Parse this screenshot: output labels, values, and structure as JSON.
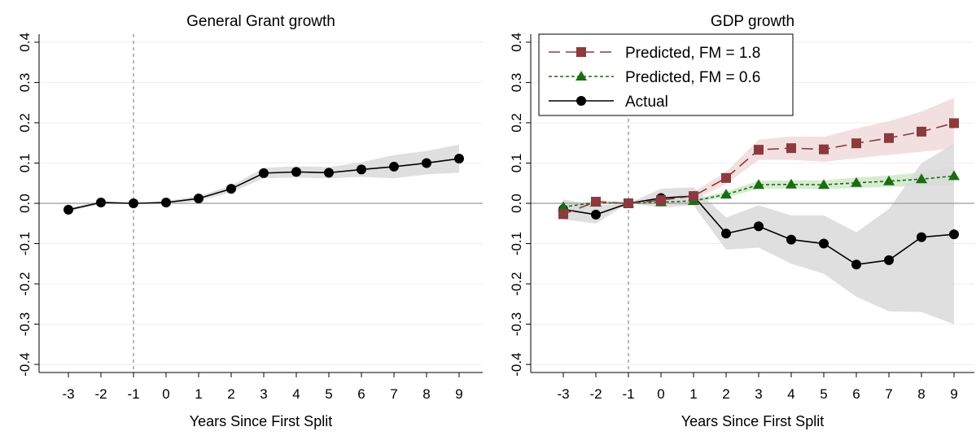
{
  "chart_data": [
    {
      "type": "line",
      "title": "General Grant growth",
      "xlabel": "Years Since First Split",
      "ylabel": "",
      "x": [
        -3,
        -2,
        -1,
        0,
        1,
        2,
        3,
        4,
        5,
        6,
        7,
        8,
        9
      ],
      "xticks": [
        "-3",
        "-2",
        "-1",
        "0",
        "1",
        "2",
        "3",
        "4",
        "5",
        "6",
        "7",
        "8",
        "9"
      ],
      "yticks": [
        "-0.4",
        "-0.3",
        "-0.2",
        "-0.1",
        "0.0",
        "0.1",
        "0.2",
        "0.3",
        "0.4"
      ],
      "ylim": [
        -0.42,
        0.42
      ],
      "xlim": [
        -3.5,
        9.5
      ],
      "grid": "horizontal",
      "zero_line": true,
      "vline_x": -1,
      "series": [
        {
          "style": "solid-circle",
          "color": "#000000",
          "values": [
            -0.016,
            0.002,
            0.0,
            0.002,
            0.012,
            0.036,
            0.075,
            0.078,
            0.076,
            0.084,
            0.091,
            0.1,
            0.111
          ],
          "ci_lower": [
            -0.02,
            -0.002,
            0.0,
            -0.002,
            0.006,
            0.027,
            0.062,
            0.064,
            0.062,
            0.066,
            0.062,
            0.072,
            0.076
          ],
          "ci_upper": [
            -0.012,
            0.006,
            0.0,
            0.006,
            0.018,
            0.044,
            0.088,
            0.092,
            0.09,
            0.102,
            0.12,
            0.13,
            0.146
          ],
          "ci_color": "#d9d9d9"
        }
      ]
    },
    {
      "type": "line",
      "title": "GDP growth",
      "xlabel": "Years Since First Split",
      "ylabel": "",
      "x": [
        -3,
        -2,
        -1,
        0,
        1,
        2,
        3,
        4,
        5,
        6,
        7,
        8,
        9
      ],
      "xticks": [
        "-3",
        "-2",
        "-1",
        "0",
        "1",
        "2",
        "3",
        "4",
        "5",
        "6",
        "7",
        "8",
        "9"
      ],
      "yticks": [
        "-0.4",
        "-0.3",
        "-0.2",
        "-0.1",
        "0.0",
        "0.1",
        "0.2",
        "0.3",
        "0.4"
      ],
      "ylim": [
        -0.42,
        0.42
      ],
      "xlim": [
        -3.5,
        9.5
      ],
      "grid": "horizontal",
      "zero_line": true,
      "vline_x": -1,
      "legend_position": "top-left",
      "series": [
        {
          "name": "Predicted, FM = 1.8",
          "style": "dash-square",
          "color": "#8b3a3e",
          "values": [
            -0.027,
            0.004,
            0.0,
            0.008,
            0.018,
            0.063,
            0.133,
            0.137,
            0.134,
            0.149,
            0.162,
            0.178,
            0.199
          ],
          "ci_lower": [
            -0.035,
            -0.002,
            0.0,
            0.0,
            0.008,
            0.048,
            0.108,
            0.108,
            0.103,
            0.112,
            0.12,
            0.128,
            0.136
          ],
          "ci_upper": [
            -0.019,
            0.01,
            0.0,
            0.016,
            0.028,
            0.078,
            0.158,
            0.166,
            0.165,
            0.186,
            0.204,
            0.228,
            0.262
          ],
          "ci_color": "#f0dada"
        },
        {
          "name": "Predicted, FM = 0.6",
          "style": "dot-triangle",
          "color": "#1a6d12",
          "values": [
            -0.009,
            0.002,
            0.0,
            0.003,
            0.006,
            0.022,
            0.046,
            0.047,
            0.046,
            0.051,
            0.055,
            0.06,
            0.068
          ],
          "ci_lower": [
            -0.013,
            -0.002,
            0.0,
            0.0,
            0.002,
            0.015,
            0.036,
            0.037,
            0.035,
            0.038,
            0.041,
            0.043,
            0.046
          ],
          "ci_upper": [
            -0.005,
            0.006,
            0.0,
            0.006,
            0.01,
            0.029,
            0.056,
            0.057,
            0.057,
            0.064,
            0.069,
            0.077,
            0.09
          ],
          "ci_color": "#cfe8c8"
        },
        {
          "name": "Actual",
          "style": "solid-circle",
          "color": "#000000",
          "values": [
            -0.015,
            -0.028,
            0.0,
            0.013,
            0.018,
            -0.075,
            -0.057,
            -0.09,
            -0.1,
            -0.152,
            -0.141,
            -0.084,
            -0.077
          ],
          "ci_lower": [
            -0.04,
            -0.05,
            0.0,
            -0.01,
            -0.005,
            -0.115,
            -0.11,
            -0.15,
            -0.175,
            -0.232,
            -0.268,
            -0.27,
            -0.3
          ],
          "ci_upper": [
            0.01,
            -0.006,
            0.0,
            0.036,
            0.04,
            -0.035,
            -0.005,
            -0.03,
            -0.03,
            -0.072,
            -0.014,
            0.1,
            0.148
          ],
          "ci_color": "#d9d9d9"
        }
      ]
    }
  ]
}
